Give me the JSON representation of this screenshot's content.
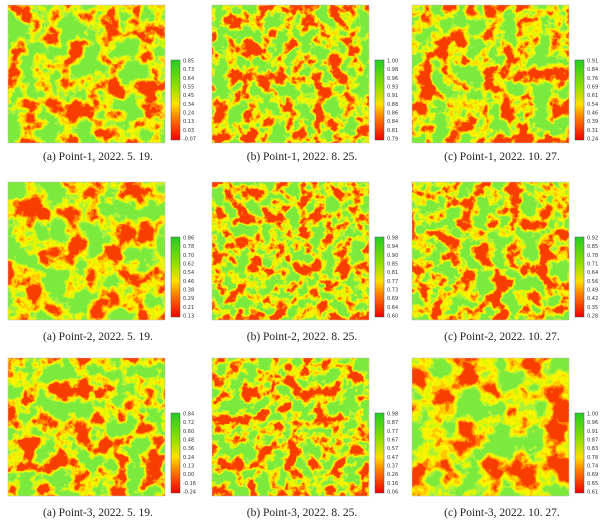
{
  "panels": [
    {
      "caption": "(a) Point-1, 2022. 5. 19.",
      "colorbar_ticks": [
        "0.85",
        "0.73",
        "0.64",
        "0.55",
        "0.45",
        "0.34",
        "0.24",
        "0.13",
        "0.03",
        "-0.07"
      ]
    },
    {
      "caption": "(b) Point-1, 2022. 8. 25.",
      "colorbar_ticks": [
        "1.00",
        "0.98",
        "0.96",
        "0.93",
        "0.91",
        "0.88",
        "0.86",
        "0.84",
        "0.81",
        "0.79"
      ]
    },
    {
      "caption": "(c) Point-1, 2022. 10. 27.",
      "colorbar_ticks": [
        "0.91",
        "0.84",
        "0.76",
        "0.69",
        "0.61",
        "0.54",
        "0.46",
        "0.39",
        "0.31",
        "0.24"
      ]
    },
    {
      "caption": "(a) Point-2, 2022. 5. 19.",
      "colorbar_ticks": [
        "0.86",
        "0.78",
        "0.70",
        "0.62",
        "0.54",
        "0.46",
        "0.38",
        "0.29",
        "0.21",
        "0.13"
      ]
    },
    {
      "caption": "(b) Point-2, 2022. 8. 25.",
      "colorbar_ticks": [
        "0.98",
        "0.94",
        "0.90",
        "0.85",
        "0.81",
        "0.77",
        "0.73",
        "0.69",
        "0.64",
        "0.60"
      ]
    },
    {
      "caption": "(c) Point-2, 2022. 10. 27.",
      "colorbar_ticks": [
        "0.92",
        "0.85",
        "0.78",
        "0.71",
        "0.64",
        "0.56",
        "0.49",
        "0.42",
        "0.35",
        "0.28"
      ]
    },
    {
      "caption": "(a) Point-3, 2022. 5. 19.",
      "colorbar_ticks": [
        "0.84",
        "0.72",
        "0.60",
        "0.48",
        "0.36",
        "0.24",
        "0.13",
        "0.00",
        "-0.16",
        "-0.24"
      ]
    },
    {
      "caption": "(b) Point-3, 2022. 8. 25.",
      "colorbar_ticks": [
        "0.98",
        "0.87",
        "0.77",
        "0.67",
        "0.57",
        "0.47",
        "0.37",
        "0.26",
        "0.16",
        "0.06"
      ]
    },
    {
      "caption": "(c) Point-3, 2022. 10. 27.",
      "colorbar_ticks": [
        "1.00",
        "0.96",
        "0.91",
        "0.87",
        "0.83",
        "0.78",
        "0.74",
        "0.69",
        "0.65",
        "0.61"
      ]
    }
  ]
}
